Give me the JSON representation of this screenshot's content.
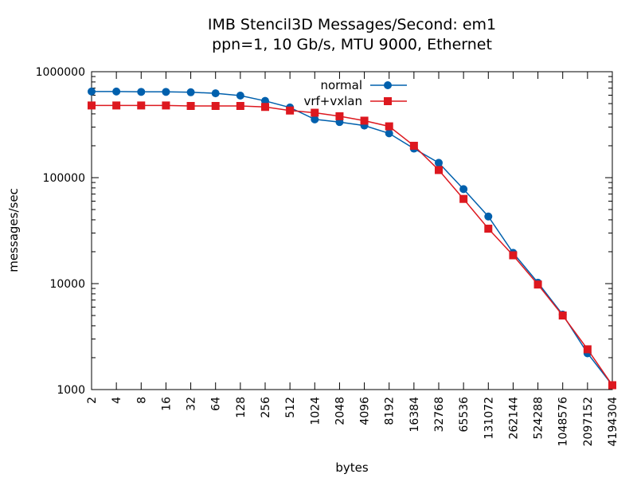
{
  "chart_data": {
    "type": "line",
    "title": "IMB Stencil3D Messages/Second: em1",
    "subtitle": "ppn=1, 10 Gb/s, MTU 9000, Ethernet",
    "xlabel": "bytes",
    "ylabel": "messages/sec",
    "x_scale": "log2",
    "y_scale": "log10",
    "xlim": [
      2,
      4194304
    ],
    "ylim": [
      1000,
      1000000
    ],
    "x_ticks": [
      "2",
      "4",
      "8",
      "16",
      "32",
      "64",
      "128",
      "256",
      "512",
      "1024",
      "2048",
      "4096",
      "8192",
      "16384",
      "32768",
      "65536",
      "131072",
      "262144",
      "524288",
      "1048576",
      "2097152",
      "4194304"
    ],
    "y_ticks": [
      "1000",
      "10000",
      "100000",
      "1000000"
    ],
    "legend_position": "top-center",
    "x": [
      2,
      4,
      8,
      16,
      32,
      64,
      128,
      256,
      512,
      1024,
      2048,
      4096,
      8192,
      16384,
      32768,
      65536,
      131072,
      262144,
      524288,
      1048576,
      2097152,
      4194304
    ],
    "series": [
      {
        "name": "normal",
        "color": "#0060ad",
        "marker": "circle",
        "values": [
          650000,
          650000,
          645000,
          645000,
          640000,
          625000,
          595000,
          530000,
          460000,
          355000,
          335000,
          310000,
          262000,
          188000,
          138000,
          78000,
          43000,
          19500,
          10200,
          5100,
          2200,
          1100
        ]
      },
      {
        "name": "vrf+vxlan",
        "color": "#dd181f",
        "marker": "square",
        "values": [
          480000,
          480000,
          480000,
          480000,
          475000,
          475000,
          475000,
          465000,
          430000,
          410000,
          380000,
          345000,
          305000,
          200000,
          118000,
          63000,
          33000,
          18500,
          9800,
          5000,
          2400,
          1100
        ]
      }
    ]
  }
}
